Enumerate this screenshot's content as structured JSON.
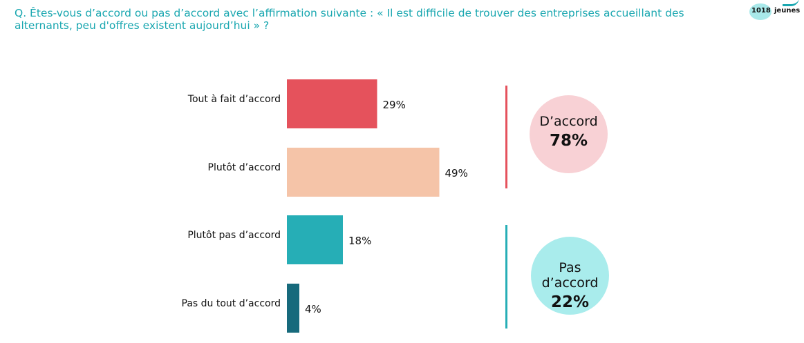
{
  "header": {
    "question": "Q. Êtes-vous d’accord ou pas d’accord avec l’affirmation suivante : « Il est difficile de trouver des entreprises accueillant des alternants, peu d'offres existent aujourd’hui » ?",
    "sample_count": "1018",
    "sample_unit": "jeunes"
  },
  "chart_data": {
    "type": "bar",
    "orientation": "horizontal",
    "categories": [
      "Tout à fait d’accord",
      "Plutôt d’accord",
      "Plutôt pas d’accord",
      "Pas du tout d’accord"
    ],
    "values": [
      29,
      49,
      18,
      4
    ],
    "value_labels": [
      "29%",
      "49%",
      "18%",
      "4%"
    ],
    "colors": [
      "#e5525c",
      "#f5c4a8",
      "#26aeb6",
      "#176a7c"
    ],
    "xlim": [
      0,
      100
    ],
    "grid": false,
    "legend": "none"
  },
  "summary": {
    "agree": {
      "label": "D’accord",
      "value": "78%",
      "color": "#f8d1d5",
      "line_color": "#e5525c"
    },
    "disagree": {
      "label": "Pas d’accord",
      "value": "22%",
      "color": "#a9ecec",
      "line_color": "#26aeb6"
    }
  }
}
